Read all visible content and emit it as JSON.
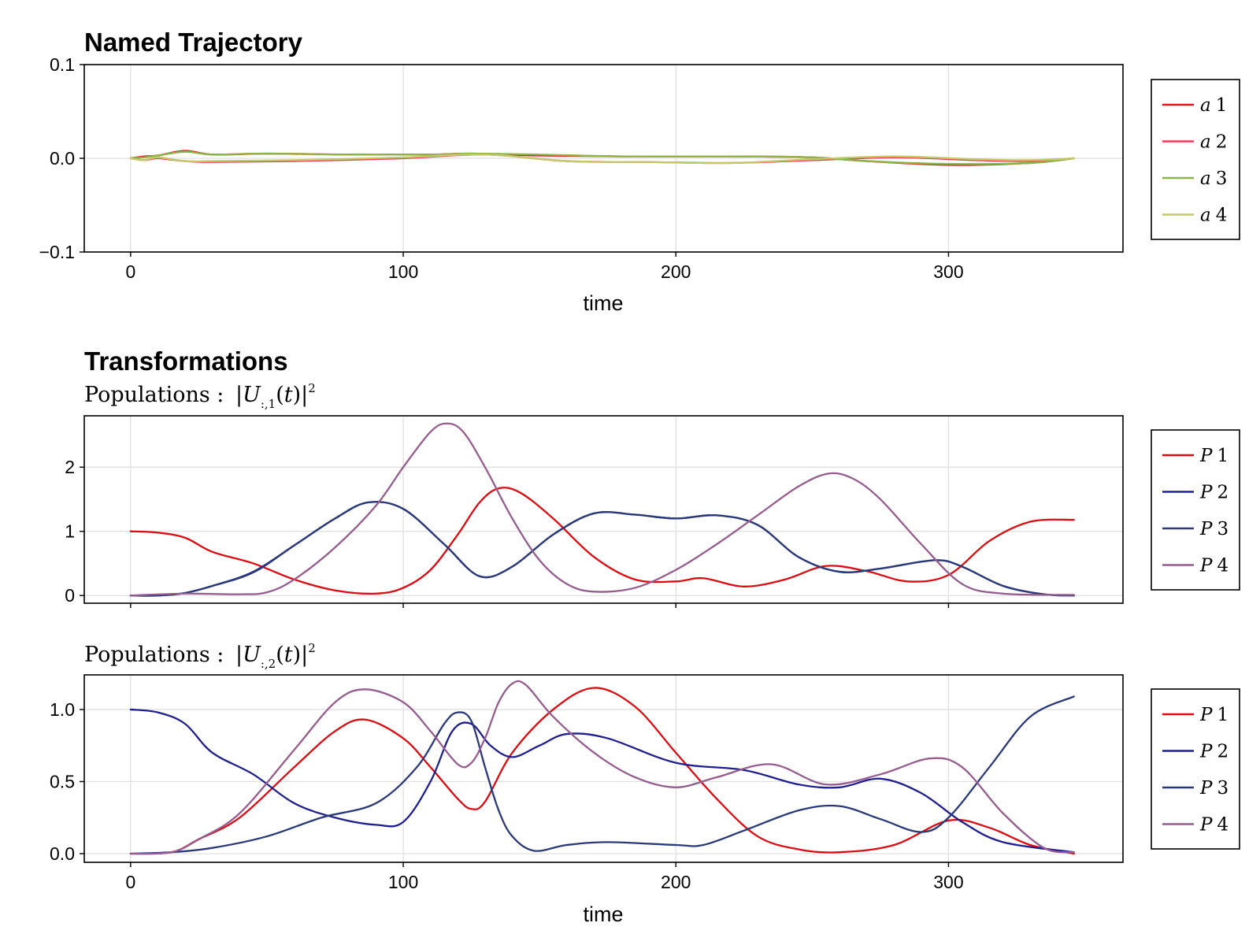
{
  "charts": {
    "trajectory": {
      "title": "Named Trajectory",
      "xlabel": "time",
      "legend": [
        "a 1",
        "a 2",
        "a 3",
        "a 4"
      ]
    },
    "transformations": {
      "title": "Transformations",
      "pop1_title": "Populations: |U:,1(t)|²",
      "pop2_title": "Populations: |U:,2(t)|²",
      "xlabel": "time",
      "legend": [
        "P 1",
        "P 2",
        "P 3",
        "P 4"
      ]
    }
  },
  "colors": {
    "a1": "#e3121b",
    "a2": "#f03a57",
    "a3": "#8db349",
    "a4": "#c2c96a",
    "p1": "#dc0c12",
    "p2": "#1f1f8f",
    "p3": "#2a3a78",
    "p4": "#965c8e",
    "grid": "#e1e1e1"
  },
  "chart_data": [
    {
      "type": "line",
      "title": "Named Trajectory",
      "xlabel": "time",
      "ylabel": "",
      "xlim": [
        -17,
        364
      ],
      "ylim": [
        -0.1,
        0.1
      ],
      "xticks": [
        0,
        100,
        200,
        300
      ],
      "yticks": [
        -0.1,
        0.0,
        0.1
      ],
      "ytick_labels": [
        "−0.1",
        "0.0",
        "0.1"
      ],
      "grid": true,
      "legend_position": "right",
      "series": [
        {
          "name": "a 1",
          "color": "#e3121b",
          "x": [
            0,
            5,
            10,
            20,
            30,
            50,
            80,
            110,
            125,
            150,
            180,
            220,
            250,
            270,
            300,
            330,
            346
          ],
          "y": [
            0,
            0.002,
            0.003,
            0.008,
            0.004,
            0.005,
            0.004,
            0.004,
            0.005,
            0.003,
            0.002,
            0.002,
            0.001,
            -0.003,
            -0.007,
            -0.005,
            0
          ]
        },
        {
          "name": "a 2",
          "color": "#f03a57",
          "x": [
            0,
            5,
            10,
            20,
            30,
            60,
            100,
            130,
            160,
            190,
            220,
            250,
            280,
            310,
            330,
            346
          ],
          "y": [
            0,
            -0.002,
            0.0,
            -0.003,
            -0.004,
            -0.003,
            0.0,
            0.004,
            -0.003,
            -0.004,
            -0.005,
            -0.002,
            0.001,
            -0.002,
            -0.003,
            0
          ]
        },
        {
          "name": "a 3",
          "color": "#8db349",
          "x": [
            0,
            5,
            10,
            20,
            30,
            50,
            80,
            110,
            125,
            150,
            180,
            220,
            250,
            270,
            300,
            330,
            346
          ],
          "y": [
            0,
            0.001,
            0.003,
            0.007,
            0.004,
            0.005,
            0.004,
            0.004,
            0.005,
            0.004,
            0.002,
            0.002,
            0.001,
            -0.003,
            -0.006,
            -0.005,
            0
          ]
        },
        {
          "name": "a 4",
          "color": "#c2c96a",
          "x": [
            0,
            5,
            10,
            20,
            30,
            60,
            100,
            130,
            160,
            190,
            220,
            250,
            280,
            310,
            330,
            346
          ],
          "y": [
            0,
            -0.002,
            0.001,
            -0.003,
            -0.003,
            -0.002,
            0.001,
            0.004,
            -0.003,
            -0.004,
            -0.005,
            -0.001,
            0.002,
            -0.001,
            -0.002,
            0
          ]
        }
      ]
    },
    {
      "type": "line",
      "title": "Populations: |U:,1(t)|²",
      "xlabel": "",
      "ylabel": "",
      "xlim": [
        -17,
        364
      ],
      "ylim": [
        -0.12,
        2.8
      ],
      "xticks": [
        0,
        100,
        200,
        300
      ],
      "yticks": [
        0,
        1,
        2
      ],
      "ytick_labels": [
        "0",
        "1",
        "2"
      ],
      "grid": true,
      "legend_position": "right",
      "series": [
        {
          "name": "P 1",
          "color": "#dc0c12",
          "x": [
            0,
            10,
            20,
            30,
            45,
            60,
            75,
            90,
            100,
            110,
            120,
            128,
            135,
            143,
            155,
            170,
            185,
            200,
            210,
            225,
            240,
            255,
            270,
            285,
            300,
            315,
            330,
            346
          ],
          "y": [
            1.0,
            0.98,
            0.9,
            0.68,
            0.5,
            0.25,
            0.08,
            0.03,
            0.12,
            0.4,
            0.95,
            1.45,
            1.67,
            1.6,
            1.2,
            0.6,
            0.25,
            0.22,
            0.27,
            0.14,
            0.25,
            0.46,
            0.38,
            0.22,
            0.32,
            0.85,
            1.15,
            1.18
          ]
        },
        {
          "name": "P 2",
          "color": "#1f1f8f",
          "x": [
            0,
            10,
            20,
            30,
            45,
            60,
            75,
            87,
            100,
            115,
            128,
            140,
            155,
            170,
            185,
            200,
            215,
            230,
            245,
            260,
            275,
            295,
            305,
            320,
            335,
            346
          ],
          "y": [
            0.0,
            0.0,
            0.04,
            0.15,
            0.37,
            0.78,
            1.2,
            1.45,
            1.35,
            0.8,
            0.3,
            0.45,
            0.95,
            1.28,
            1.26,
            1.2,
            1.25,
            1.1,
            0.6,
            0.37,
            0.42,
            0.55,
            0.45,
            0.15,
            0.02,
            0.0
          ]
        },
        {
          "name": "P 3",
          "color": "#2a3a78",
          "x": [
            0,
            10,
            20,
            30,
            45,
            60,
            75,
            87,
            100,
            115,
            128,
            140,
            155,
            170,
            185,
            200,
            215,
            230,
            245,
            260,
            275,
            295,
            305,
            320,
            335,
            346
          ],
          "y": [
            0.0,
            0.0,
            0.04,
            0.15,
            0.36,
            0.78,
            1.2,
            1.45,
            1.35,
            0.8,
            0.3,
            0.45,
            0.95,
            1.28,
            1.26,
            1.2,
            1.25,
            1.1,
            0.6,
            0.37,
            0.42,
            0.55,
            0.45,
            0.15,
            0.02,
            0.0
          ]
        },
        {
          "name": "P 4",
          "color": "#965c8e",
          "x": [
            0,
            20,
            40,
            50,
            60,
            75,
            90,
            100,
            110,
            116,
            122,
            130,
            140,
            150,
            160,
            170,
            185,
            200,
            215,
            230,
            245,
            256,
            265,
            275,
            290,
            305,
            320,
            346
          ],
          "y": [
            0.0,
            0.03,
            0.02,
            0.05,
            0.25,
            0.75,
            1.4,
            2.0,
            2.55,
            2.68,
            2.55,
            2.0,
            1.2,
            0.55,
            0.18,
            0.06,
            0.12,
            0.4,
            0.8,
            1.25,
            1.7,
            1.9,
            1.82,
            1.5,
            0.8,
            0.18,
            0.03,
            0.01
          ]
        }
      ]
    },
    {
      "type": "line",
      "title": "Populations: |U:,2(t)|²",
      "xlabel": "time",
      "ylabel": "",
      "xlim": [
        -17,
        364
      ],
      "ylim": [
        -0.06,
        1.24
      ],
      "xticks": [
        0,
        100,
        200,
        300
      ],
      "yticks": [
        0.0,
        0.5,
        1.0
      ],
      "ytick_labels": [
        "0.0",
        "0.5",
        "1.0"
      ],
      "grid": true,
      "legend_position": "right",
      "series": [
        {
          "name": "P 1",
          "color": "#dc0c12",
          "x": [
            0,
            15,
            25,
            40,
            60,
            75,
            86,
            100,
            110,
            120,
            125,
            130,
            140,
            155,
            170,
            185,
            200,
            215,
            230,
            245,
            260,
            280,
            300,
            315,
            330,
            346
          ],
          "y": [
            0.0,
            0.01,
            0.1,
            0.25,
            0.6,
            0.85,
            0.93,
            0.8,
            0.6,
            0.38,
            0.31,
            0.36,
            0.7,
            1.0,
            1.15,
            1.02,
            0.7,
            0.38,
            0.12,
            0.03,
            0.01,
            0.06,
            0.23,
            0.18,
            0.06,
            0.0
          ]
        },
        {
          "name": "P 2",
          "color": "#1f1f8f",
          "x": [
            0,
            10,
            20,
            30,
            45,
            60,
            75,
            90,
            100,
            110,
            118,
            125,
            132,
            140,
            150,
            160,
            175,
            200,
            225,
            245,
            260,
            275,
            290,
            305,
            320,
            346
          ],
          "y": [
            1.0,
            0.98,
            0.9,
            0.7,
            0.55,
            0.35,
            0.25,
            0.2,
            0.22,
            0.5,
            0.85,
            0.9,
            0.75,
            0.67,
            0.75,
            0.83,
            0.8,
            0.63,
            0.58,
            0.48,
            0.46,
            0.52,
            0.42,
            0.22,
            0.08,
            0.01
          ]
        },
        {
          "name": "P 3",
          "color": "#2a3a78",
          "x": [
            0,
            15,
            30,
            50,
            70,
            90,
            105,
            115,
            120,
            125,
            130,
            135,
            140,
            148,
            160,
            175,
            200,
            210,
            225,
            245,
            260,
            275,
            290,
            300,
            315,
            330,
            346
          ],
          "y": [
            0.0,
            0.01,
            0.04,
            0.12,
            0.25,
            0.35,
            0.6,
            0.9,
            0.98,
            0.92,
            0.6,
            0.3,
            0.12,
            0.02,
            0.06,
            0.08,
            0.06,
            0.06,
            0.16,
            0.3,
            0.33,
            0.24,
            0.15,
            0.25,
            0.6,
            0.95,
            1.09
          ]
        },
        {
          "name": "P 4",
          "color": "#965c8e",
          "x": [
            0,
            15,
            25,
            40,
            60,
            75,
            86,
            100,
            110,
            120,
            125,
            130,
            135,
            140,
            145,
            155,
            170,
            185,
            200,
            215,
            235,
            255,
            275,
            293,
            305,
            320,
            335,
            346
          ],
          "y": [
            0.0,
            0.01,
            0.1,
            0.28,
            0.72,
            1.05,
            1.14,
            1.05,
            0.85,
            0.62,
            0.63,
            0.8,
            1.05,
            1.18,
            1.17,
            0.95,
            0.7,
            0.53,
            0.46,
            0.53,
            0.62,
            0.48,
            0.55,
            0.66,
            0.6,
            0.28,
            0.04,
            0.01
          ]
        }
      ]
    }
  ]
}
